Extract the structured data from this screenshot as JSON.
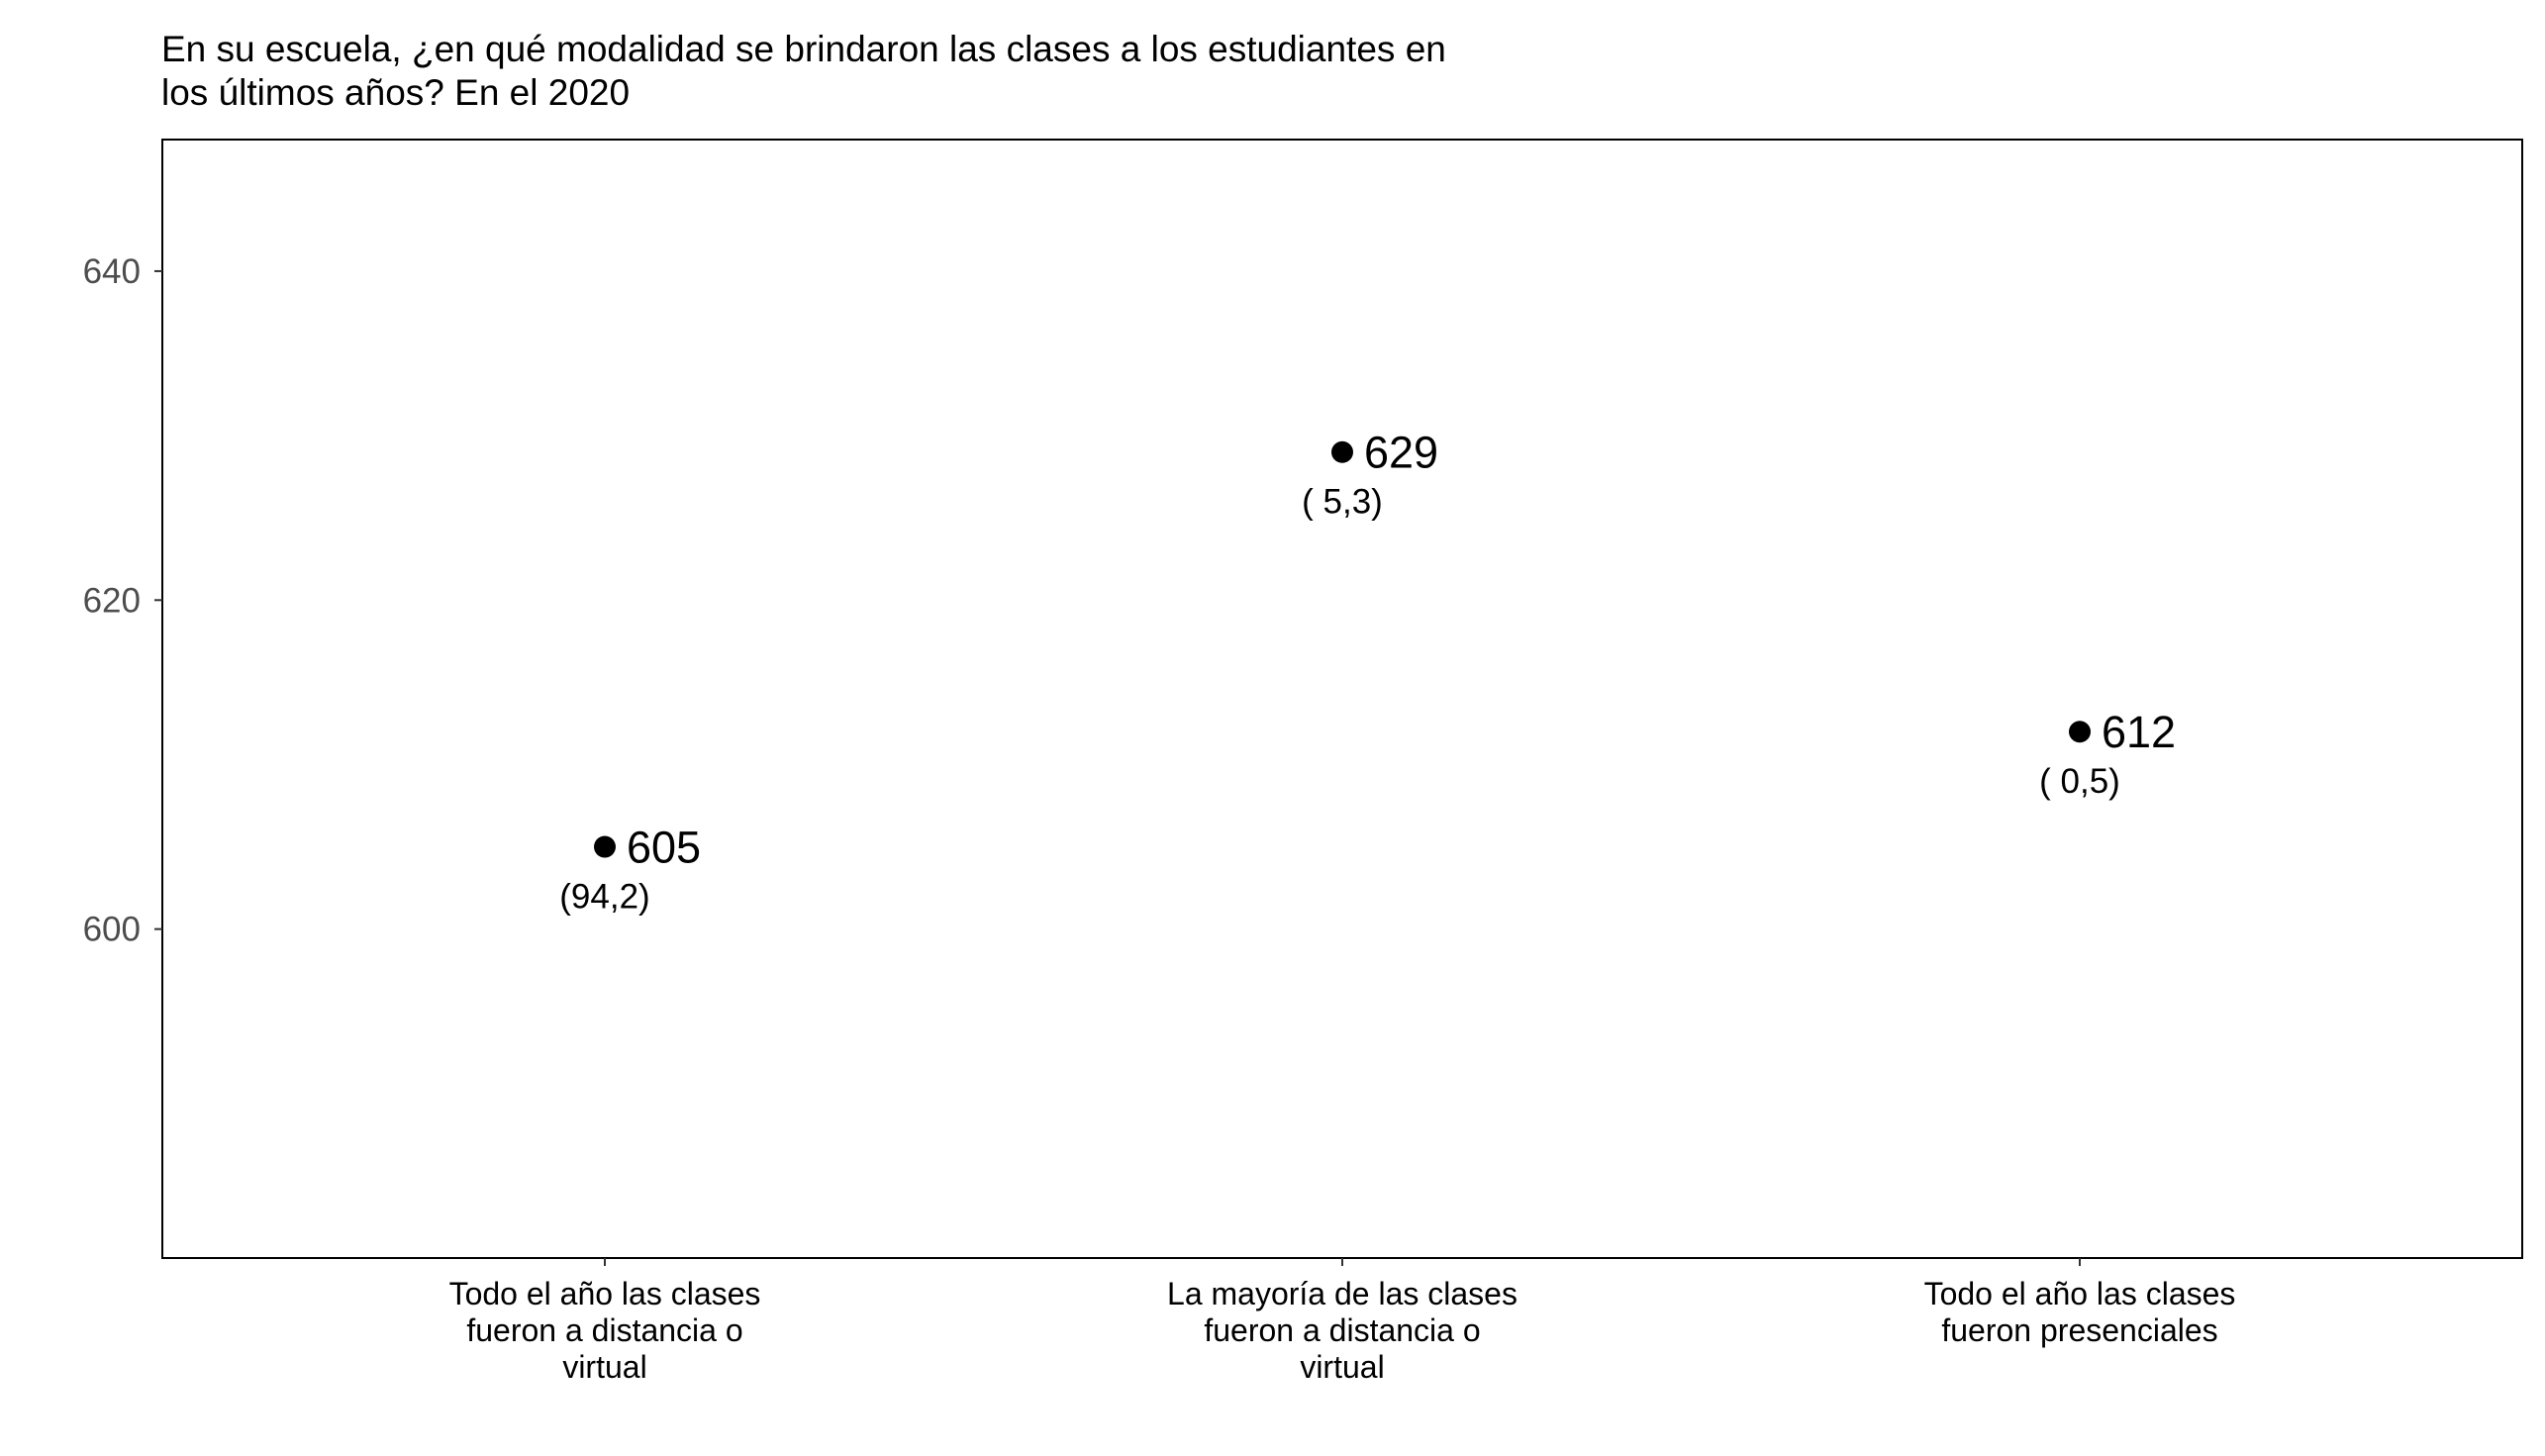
{
  "chart_data": {
    "type": "scatter",
    "title_lines": [
      "En su escuela, ¿en qué modalidad se brindaron las clases a los estudiantes en",
      "los últimos años? En el 2020"
    ],
    "xlabel": "",
    "ylabel": "",
    "ylim": [
      580,
      648
    ],
    "yticks": [
      600,
      620,
      640
    ],
    "grid": false,
    "legend": "none",
    "categories": [
      [
        "Todo el año las clases",
        "fueron a distancia o",
        "virtual"
      ],
      [
        "La mayoría de las clases",
        "fueron a distancia o",
        "virtual"
      ],
      [
        "Todo el año las clases",
        "fueron presenciales"
      ]
    ],
    "values": [
      605,
      629,
      612
    ],
    "value_labels": [
      "605",
      "629",
      "612"
    ],
    "sub_labels": [
      "(94,2)",
      "( 5,3)",
      "( 0,5)"
    ],
    "colors": {
      "point": "#000000",
      "frame": "#000000",
      "tick_text": "#4d4d4d"
    }
  }
}
